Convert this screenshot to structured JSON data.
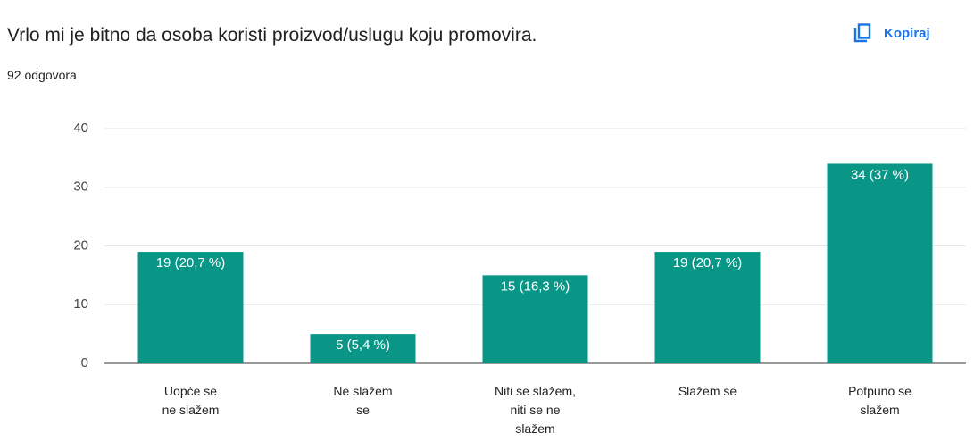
{
  "header": {
    "title": "Vrlo mi je bitno da osoba koristi proizvod/uslugu koju promovira.",
    "responses": "92 odgovora",
    "copy_button": "Kopiraj"
  },
  "chart_data": {
    "type": "bar",
    "categories": [
      "Uopće se\nne slažem",
      "Ne slažem\nse",
      "Niti se slažem,\nniti se ne\nslažem",
      "Slažem se",
      "Potpuno se\nslažem"
    ],
    "values": [
      19,
      5,
      15,
      19,
      34
    ],
    "value_labels": [
      "19 (20,7 %)",
      "5 (5,4 %)",
      "15 (16,3 %)",
      "19 (20,7 %)",
      "34 (37 %)"
    ],
    "color": "#0a9686",
    "ylim": [
      0,
      40
    ],
    "yticks": [
      0,
      10,
      20,
      30,
      40
    ],
    "grid": true
  }
}
